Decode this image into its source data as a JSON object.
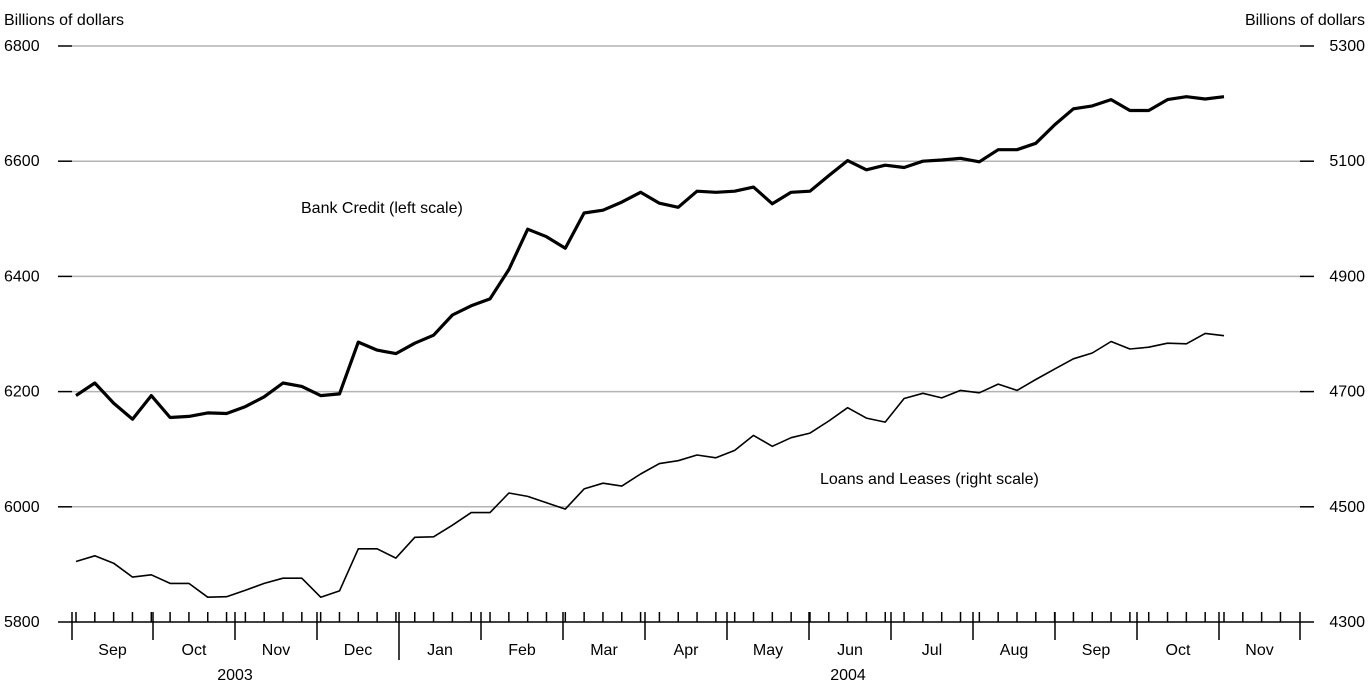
{
  "chart_data": {
    "type": "line",
    "left_axis": {
      "label": "Billions of dollars",
      "ylim": [
        5800,
        6800
      ],
      "ticks": [
        "5800",
        "6000",
        "6200",
        "6400",
        "6600",
        "6800"
      ]
    },
    "right_axis": {
      "label": "Billions of dollars",
      "ylim": [
        4300,
        5300
      ],
      "ticks": [
        "4300",
        "4500",
        "4700",
        "4900",
        "5100",
        "5300"
      ]
    },
    "months": [
      "Sep",
      "Oct",
      "Nov",
      "Dec",
      "Jan",
      "Feb",
      "Mar",
      "Apr",
      "May",
      "Jun",
      "Jul",
      "Aug",
      "Sep",
      "Oct",
      "Nov"
    ],
    "years": [
      "2003",
      "2004"
    ],
    "grid": true,
    "series": [
      {
        "name": "Bank Credit (left scale)",
        "axis": "left",
        "values": [
          6193,
          6215,
          6180,
          6152,
          6193,
          6155,
          6157,
          6163,
          6162,
          6174,
          6191,
          6215,
          6209,
          6193,
          6196,
          6286,
          6272,
          6266,
          6284,
          6298,
          6333,
          6349,
          6361,
          6412,
          6482,
          6469,
          6449,
          6510,
          6515,
          6529,
          6546,
          6527,
          6520,
          6548,
          6546,
          6548,
          6555,
          6526,
          6546,
          6548,
          6575,
          6601,
          6585,
          6593,
          6589,
          6600,
          6602,
          6605,
          6599,
          6620,
          6620,
          6631,
          6663,
          6691,
          6696,
          6707,
          6688,
          6688,
          6707,
          6712,
          6708,
          6712
        ]
      },
      {
        "name": "Loans and Leases (right scale)",
        "axis": "right",
        "values": [
          4405,
          4415,
          4402,
          4378,
          4382,
          4367,
          4367,
          4343,
          4344,
          4355,
          4367,
          4376,
          4376,
          4343,
          4354,
          4427,
          4427,
          4411,
          4447,
          4448,
          4468,
          4490,
          4490,
          4524,
          4518,
          4507,
          4496,
          4531,
          4541,
          4536,
          4557,
          4575,
          4580,
          4590,
          4585,
          4598,
          4624,
          4605,
          4620,
          4628,
          4649,
          4672,
          4654,
          4647,
          4688,
          4697,
          4689,
          4702,
          4698,
          4713,
          4702,
          4721,
          4739,
          4757,
          4767,
          4787,
          4774,
          4777,
          4784,
          4783,
          4801,
          4797
        ]
      }
    ]
  }
}
